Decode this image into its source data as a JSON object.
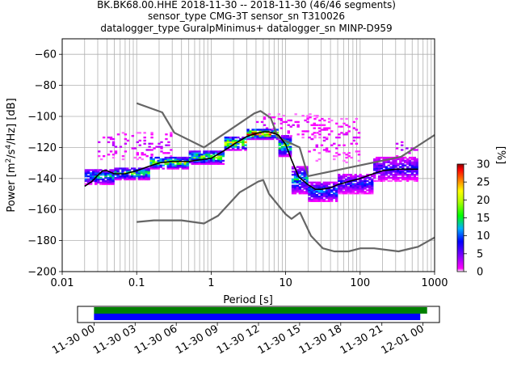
{
  "title_lines": [
    "BK.BK68.00.HHE   2018-11-30 -- 2018-11-30  (46/46 segments)",
    "sensor_type CMG-3T sensor_sn T310026",
    "datalogger_type GuralpMinimus+ datalogger_sn MINP-D959"
  ],
  "chart_data": [
    {
      "type": "heatmap",
      "xlabel": "Period [s]",
      "ylabel": "Power [m²/s⁴/Hz] [dB]",
      "xscale": "log",
      "xlim": [
        0.01,
        1000
      ],
      "ylim": [
        -200,
        -50
      ],
      "x_ticks": [
        {
          "v": 0.01,
          "label": "0.01"
        },
        {
          "v": 0.1,
          "label": "0.1"
        },
        {
          "v": 1,
          "label": "1"
        },
        {
          "v": 10,
          "label": "10"
        },
        {
          "v": 100,
          "label": "100"
        },
        {
          "v": 1000,
          "label": "1000"
        }
      ],
      "y_ticks": [
        {
          "v": -60,
          "label": "−60"
        },
        {
          "v": -80,
          "label": "−80"
        },
        {
          "v": -100,
          "label": "−100"
        },
        {
          "v": -120,
          "label": "−120"
        },
        {
          "v": -140,
          "label": "−140"
        },
        {
          "v": -160,
          "label": "−160"
        },
        {
          "v": -180,
          "label": "−180"
        },
        {
          "v": -200,
          "label": "−200"
        }
      ],
      "grid": true,
      "colorbar": {
        "label": "[%]",
        "range": [
          0,
          30
        ],
        "ticks": [
          "0",
          "5",
          "10",
          "15",
          "20",
          "25",
          "30"
        ],
        "colors": [
          "#ffffff",
          "#ff00ff",
          "#7f00ff",
          "#0000ff",
          "#00b0ff",
          "#00ff00",
          "#b0ff00",
          "#ffff00",
          "#ff8000",
          "#ff0000",
          "#8b0000"
        ]
      },
      "mean_curve": {
        "color": "#000000",
        "x": [
          0.02,
          0.025,
          0.03,
          0.035,
          0.04,
          0.05,
          0.07,
          0.1,
          0.15,
          0.2,
          0.3,
          0.5,
          0.7,
          1,
          1.5,
          2,
          3,
          4,
          5,
          6,
          7,
          8,
          10,
          12,
          15,
          20,
          25,
          30,
          40,
          50,
          70,
          100,
          150,
          200,
          300,
          400,
          500,
          600
        ],
        "y": [
          -145,
          -142,
          -138,
          -135,
          -135,
          -137,
          -137,
          -135,
          -132,
          -130,
          -129,
          -129,
          -128,
          -127,
          -122,
          -118,
          -113,
          -111,
          -110,
          -110,
          -111,
          -112,
          -118,
          -128,
          -139,
          -144,
          -147,
          -147,
          -146,
          -144,
          -142,
          -140,
          -137,
          -135,
          -134,
          -134,
          -134,
          -134
        ]
      },
      "nlnm": {
        "color": "#666666",
        "x": [
          0.1,
          0.17,
          0.4,
          0.8,
          1.24,
          2.4,
          4.3,
          5,
          6,
          10,
          12,
          15.6,
          21.9,
          31.6,
          45,
          70,
          101,
          154,
          328,
          600,
          1000
        ],
        "y": [
          -168,
          -167,
          -167,
          -169,
          -164,
          -149,
          -142,
          -141,
          -150,
          -163,
          -166,
          -162,
          -177,
          -185,
          -187,
          -187,
          -185,
          -185,
          -187,
          -184,
          -178
        ]
      },
      "nhnm": {
        "color": "#666666",
        "x": [
          0.1,
          0.22,
          0.32,
          0.8,
          3.8,
          4.6,
          6.3,
          7.9,
          15.4,
          20,
          354.8,
          1000
        ],
        "y": [
          -91.5,
          -97.4,
          -110.5,
          -120,
          -98,
          -96.5,
          -101,
          -113.5,
          -120,
          -138.5,
          -126,
          -112
        ]
      },
      "density_bands": [
        {
          "x0": 0.02,
          "x1": 0.05,
          "y0": -144,
          "y1": -134,
          "pct": 12
        },
        {
          "x0": 0.05,
          "x1": 0.15,
          "y0": -141,
          "y1": -133,
          "pct": 15
        },
        {
          "x0": 0.15,
          "x1": 0.5,
          "y0": -134,
          "y1": -126,
          "pct": 18
        },
        {
          "x0": 0.5,
          "x1": 1.5,
          "y0": -131,
          "y1": -122,
          "pct": 17
        },
        {
          "x0": 1.5,
          "x1": 3,
          "y0": -122,
          "y1": -113,
          "pct": 20
        },
        {
          "x0": 3,
          "x1": 8,
          "y0": -115,
          "y1": -108,
          "pct": 25
        },
        {
          "x0": 8,
          "x1": 12,
          "y0": -126,
          "y1": -112,
          "pct": 15
        },
        {
          "x0": 12,
          "x1": 20,
          "y0": -150,
          "y1": -132,
          "pct": 12
        },
        {
          "x0": 20,
          "x1": 50,
          "y0": -155,
          "y1": -142,
          "pct": 10
        },
        {
          "x0": 50,
          "x1": 150,
          "y0": -150,
          "y1": -137,
          "pct": 8
        },
        {
          "x0": 150,
          "x1": 600,
          "y0": -142,
          "y1": -126,
          "pct": 7
        }
      ],
      "scatter_spread": [
        {
          "x0": 0.03,
          "x1": 0.3,
          "y0": -128,
          "y1": -110,
          "pct": 3
        },
        {
          "x0": 4,
          "x1": 40,
          "y0": -115,
          "y1": -98,
          "pct": 2
        },
        {
          "x0": 20,
          "x1": 100,
          "y0": -130,
          "y1": -100,
          "pct": 2
        },
        {
          "x0": 300,
          "x1": 600,
          "y0": -128,
          "y1": -113,
          "pct": 3
        }
      ]
    },
    {
      "type": "timeline",
      "x_ticks": [
        "11-30 00",
        "11-30 03",
        "11-30 06",
        "11-30 09",
        "11-30 12",
        "11-30 15",
        "11-30 18",
        "11-30 21",
        "12-01 00"
      ],
      "bars": [
        {
          "color": "#008000",
          "start_hours": 0,
          "end_hours": 24.3
        },
        {
          "color": "#0000ff",
          "start_hours": 0,
          "end_hours": 23.8
        }
      ],
      "xlim_hours": [
        -1.2,
        25.2
      ]
    }
  ]
}
